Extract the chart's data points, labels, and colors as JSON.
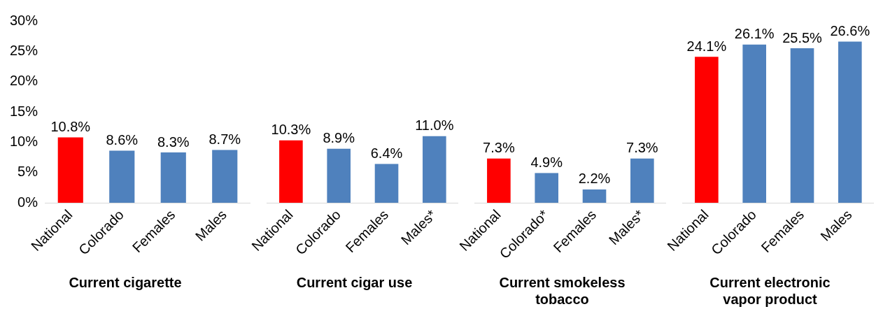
{
  "chart_data": [
    {
      "type": "bar",
      "xlabel": "Current cigarette",
      "categories": [
        "National",
        "Colorado",
        "Females",
        "Males"
      ],
      "values": [
        10.8,
        8.6,
        8.3,
        8.7
      ],
      "colors": [
        "#ff0000",
        "#4f81bd",
        "#4f81bd",
        "#4f81bd"
      ],
      "value_labels": [
        "10.8%",
        "8.6%",
        "8.3%",
        "8.7%"
      ],
      "ylim": [
        0,
        30
      ],
      "yticks": [
        {
          "value": 0,
          "label": "0%"
        },
        {
          "value": 5,
          "label": "5%"
        },
        {
          "value": 10,
          "label": "10%"
        },
        {
          "value": 15,
          "label": "15%"
        },
        {
          "value": 20,
          "label": "20%"
        },
        {
          "value": 25,
          "label": "25%"
        },
        {
          "value": 30,
          "label": "30%"
        }
      ],
      "grid": false,
      "legend": false
    },
    {
      "type": "bar",
      "xlabel": "Current cigar use",
      "categories": [
        "National",
        "Colorado",
        "Females",
        "Males*"
      ],
      "values": [
        10.3,
        8.9,
        6.4,
        11.0
      ],
      "colors": [
        "#ff0000",
        "#4f81bd",
        "#4f81bd",
        "#4f81bd"
      ],
      "value_labels": [
        "10.3%",
        "8.9%",
        "6.4%",
        "11.0%"
      ],
      "ylim": [
        0,
        30
      ],
      "tick_labels": "x",
      "grid": false,
      "legend": false
    },
    {
      "type": "bar",
      "xlabel": "Current smokeless tobacco",
      "categories": [
        "National",
        "Colorado*",
        "Females",
        "Males*"
      ],
      "values": [
        7.3,
        4.9,
        2.2,
        7.3
      ],
      "colors": [
        "#ff0000",
        "#4f81bd",
        "#4f81bd",
        "#4f81bd"
      ],
      "value_labels": [
        "7.3%",
        "4.9%",
        "2.2%",
        "7.3%"
      ],
      "ylim": [
        0,
        30
      ],
      "tick_labels": "x",
      "grid": false,
      "legend": false
    },
    {
      "type": "bar",
      "xlabel": "Current electronic vapor product",
      "categories": [
        "National",
        "Colorado",
        "Females",
        "Males"
      ],
      "values": [
        24.1,
        26.1,
        25.5,
        26.6
      ],
      "colors": [
        "#ff0000",
        "#4f81bd",
        "#4f81bd",
        "#4f81bd"
      ],
      "value_labels": [
        "24.1%",
        "26.1%",
        "25.5%",
        "26.6%"
      ],
      "ylim": [
        0,
        30
      ],
      "tick_labels": "x",
      "grid": false,
      "legend": false
    }
  ]
}
